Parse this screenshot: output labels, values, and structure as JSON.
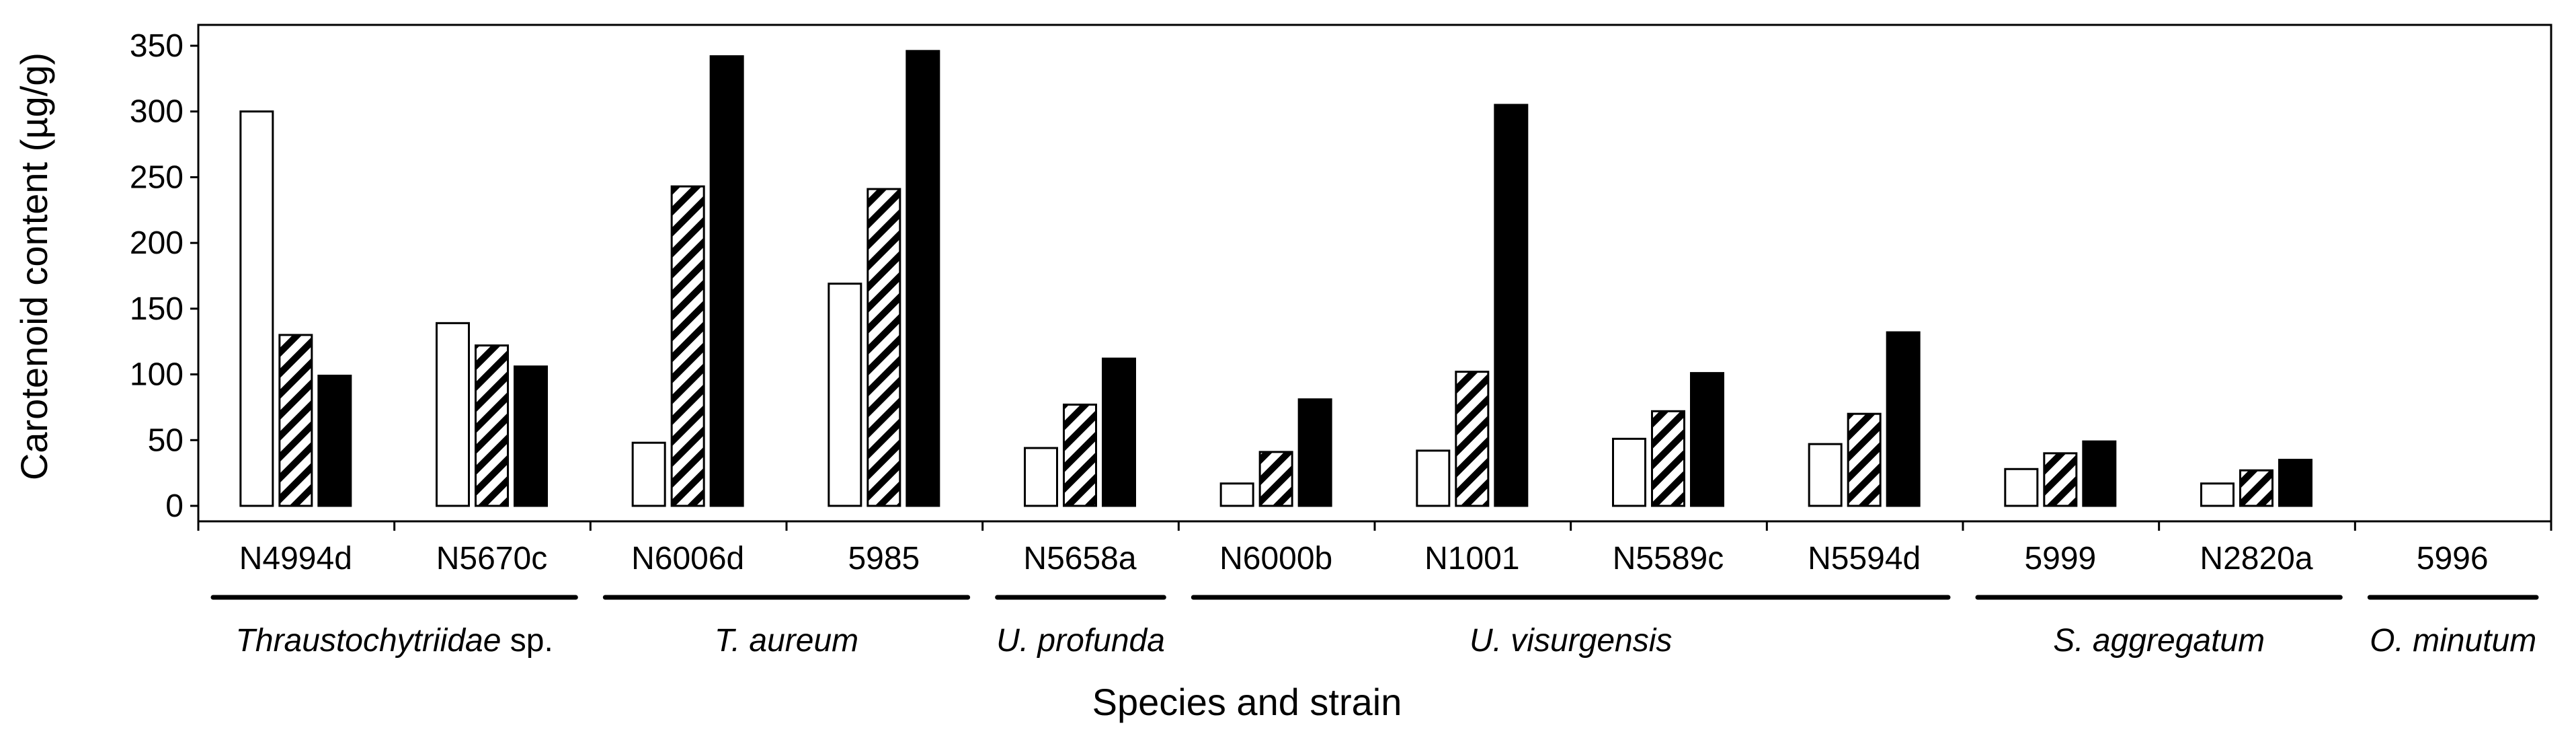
{
  "chart_data": {
    "type": "bar",
    "title": "",
    "xlabel": "Species and strain",
    "ylabel": "Carotenoid content  (µg/g)",
    "ylim": [
      0,
      350
    ],
    "yticks": [
      0,
      50,
      100,
      150,
      200,
      250,
      300,
      350
    ],
    "legend": "none",
    "categories": [
      "N4994d",
      "N5670c",
      "N6006d",
      "5985",
      "N5658a",
      "N6000b",
      "N1001",
      "N5589c",
      "N5594d",
      "5999",
      "N2820a",
      "5996"
    ],
    "series": [
      {
        "name": "white (open) bars",
        "fill": "#ffffff",
        "pattern": "none",
        "values": [
          300,
          139,
          48,
          169,
          44,
          17,
          42,
          51,
          47,
          28,
          17,
          0
        ]
      },
      {
        "name": "hatched bars",
        "fill": "#ffffff",
        "pattern": "hatch",
        "values": [
          130,
          122,
          243,
          241,
          77,
          41,
          102,
          72,
          70,
          40,
          27,
          0
        ]
      },
      {
        "name": "black bars",
        "fill": "#000000",
        "pattern": "none",
        "values": [
          99,
          106,
          342,
          346,
          112,
          81,
          305,
          101,
          132,
          49,
          35,
          0
        ]
      }
    ],
    "groups": [
      {
        "name": "Thraustochytriidae",
        "suffix": " sp.",
        "categories": [
          "N4994d",
          "N5670c"
        ]
      },
      {
        "name": "T. aureum",
        "suffix": "",
        "categories": [
          "N6006d",
          "5985"
        ]
      },
      {
        "name": "U. profunda",
        "suffix": "",
        "categories": [
          "N5658a"
        ]
      },
      {
        "name": "U. visurgensis",
        "suffix": "",
        "categories": [
          "N6000b",
          "N1001",
          "N5589c",
          "N5594d"
        ]
      },
      {
        "name": "S. aggregatum",
        "suffix": "",
        "categories": [
          "5999",
          "N2820a"
        ]
      },
      {
        "name": "O. minutum",
        "suffix": "",
        "categories": [
          "5996"
        ]
      }
    ]
  }
}
